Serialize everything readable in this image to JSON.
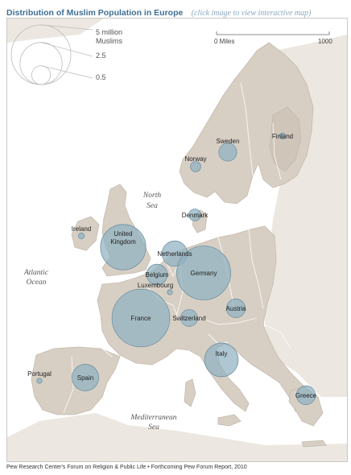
{
  "header": {
    "title": "Distribution of Muslim Population in Europe",
    "subtitle": "(click image to view interactive map)"
  },
  "legend": {
    "size_labels": [
      "5 million",
      "Muslims",
      "2.5",
      "0.5"
    ],
    "size_values_million": [
      5,
      2.5,
      0.5
    ]
  },
  "scale_bar": {
    "start": "0 Miles",
    "end": "1000"
  },
  "water_labels": [
    {
      "id": "north-sea",
      "lines": [
        "North",
        "Sea"
      ]
    },
    {
      "id": "atlantic-ocean",
      "lines": [
        "Atlantic",
        "Ocean"
      ]
    },
    {
      "id": "mediterranean-sea",
      "lines": [
        "Mediterranean",
        "Sea"
      ]
    }
  ],
  "countries": [
    {
      "id": "finland",
      "lines": [
        "Finland"
      ],
      "value": 0.05
    },
    {
      "id": "sweden",
      "lines": [
        "Sweden"
      ],
      "value": 0.45
    },
    {
      "id": "norway",
      "lines": [
        "Norway"
      ],
      "value": 0.15
    },
    {
      "id": "denmark",
      "lines": [
        "Denmark"
      ],
      "value": 0.2
    },
    {
      "id": "ireland",
      "lines": [
        "Ireland"
      ],
      "value": 0.05
    },
    {
      "id": "united-kingdom",
      "lines": [
        "United",
        "Kingdom"
      ],
      "value": 2.9
    },
    {
      "id": "netherlands",
      "lines": [
        "Netherlands"
      ],
      "value": 0.9
    },
    {
      "id": "belgium",
      "lines": [
        "Belgium"
      ],
      "value": 0.6
    },
    {
      "id": "luxembourg",
      "lines": [
        "Luxembourg"
      ],
      "value": 0.01
    },
    {
      "id": "germany",
      "lines": [
        "Germany"
      ],
      "value": 4.1
    },
    {
      "id": "france",
      "lines": [
        "France"
      ],
      "value": 4.7
    },
    {
      "id": "switzerland",
      "lines": [
        "Switzerland"
      ],
      "value": 0.4
    },
    {
      "id": "austria",
      "lines": [
        "Austria"
      ],
      "value": 0.5
    },
    {
      "id": "italy",
      "lines": [
        "Italy"
      ],
      "value": 1.6
    },
    {
      "id": "portugal",
      "lines": [
        "Portugal"
      ],
      "value": 0.02
    },
    {
      "id": "spain",
      "lines": [
        "Spain"
      ],
      "value": 1.0
    },
    {
      "id": "greece",
      "lines": [
        "Greece"
      ],
      "value": 0.5
    }
  ],
  "footer": {
    "credit": "Pew Research Center's Forum on Religion & Public Life • Forthcoming Pew Forum Report, 2010"
  },
  "colors": {
    "land": "#d8cfc4",
    "land_edge": "#c4b9ac",
    "background_land": "#ece7e0",
    "water": "#ffffff",
    "bubble_fill": "#8fb1c0",
    "bubble_stroke": "#6f93a5"
  }
}
